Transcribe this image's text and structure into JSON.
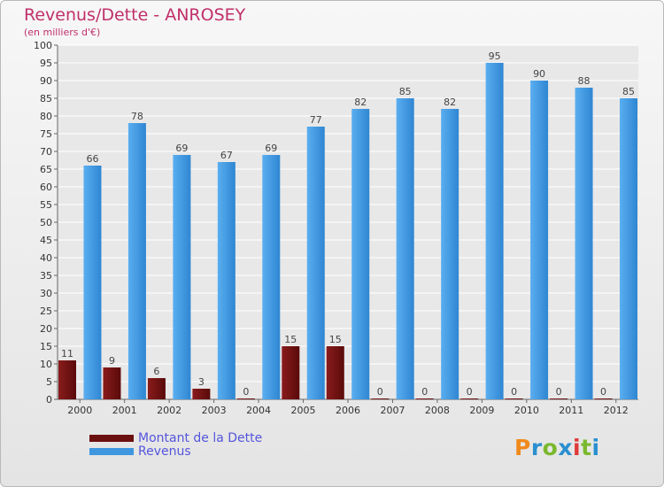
{
  "chart_data": {
    "type": "bar",
    "title": "Revenus/Dette - ANROSEY",
    "subtitle": "(en milliers d'€)",
    "categories": [
      "2000",
      "2001",
      "2002",
      "2003",
      "2004",
      "2005",
      "2006",
      "2007",
      "2008",
      "2009",
      "2010",
      "2011",
      "2012"
    ],
    "series": [
      {
        "name": "Montant de la Dette",
        "color": "#6b0f0f",
        "values": [
          11,
          9,
          6,
          3,
          0,
          15,
          15,
          0,
          0,
          0,
          0,
          0,
          0
        ]
      },
      {
        "name": "Revenus",
        "color": "#3f97e0",
        "values": [
          66,
          78,
          69,
          67,
          69,
          77,
          82,
          85,
          82,
          95,
          90,
          88,
          85
        ]
      }
    ],
    "ylim": [
      0,
      100
    ],
    "ytick_step": 5,
    "grid": true,
    "legend": "bottom-left"
  },
  "logo_text": "Proxiti",
  "logo_colors": [
    "#f08a1c",
    "#2a8fd0",
    "#7ab82e",
    "#2a8fd0",
    "#e03a3a",
    "#7ab82e",
    "#2a8fd0"
  ]
}
